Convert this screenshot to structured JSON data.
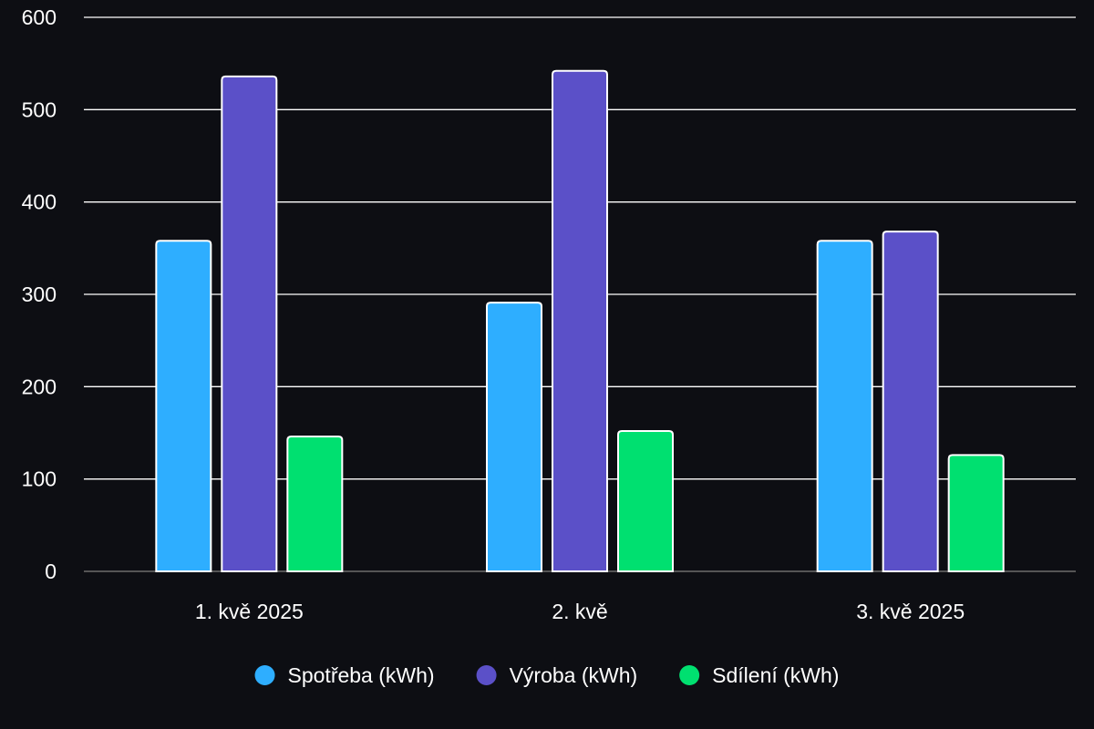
{
  "chart_data": {
    "type": "bar",
    "categories": [
      "1. kvě 2025",
      "2. kvě",
      "3. kvě 2025"
    ],
    "series": [
      {
        "name": "Spotřeba (kWh)",
        "color": "#2eaeff",
        "values": [
          358,
          291,
          358
        ]
      },
      {
        "name": "Výroba (kWh)",
        "color": "#5b50c8",
        "values": [
          536,
          542,
          368
        ]
      },
      {
        "name": "Sdílení (kWh)",
        "color": "#00e070",
        "values": [
          146,
          152,
          126
        ]
      }
    ],
    "ylim": [
      0,
      600
    ],
    "yticks": [
      0,
      100,
      200,
      300,
      400,
      500,
      600
    ],
    "grid": true,
    "legend_position": "bottom",
    "colors": {
      "background": "#0d0e13",
      "grid": "#ffffff",
      "axis": "#555555",
      "text": "#ffffff",
      "bar_border": "#ffffff"
    }
  }
}
